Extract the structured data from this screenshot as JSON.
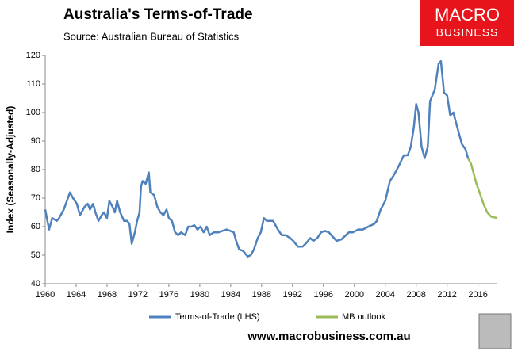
{
  "chart_data": {
    "type": "line",
    "title": "Australia's Terms-of-Trade",
    "subtitle": "Source: Australian Bureau of Statistics",
    "logo": [
      "MACRO",
      "BUSINESS"
    ],
    "footer": "www.macrobusiness.com.au",
    "y_label": "Index (Seasonally-Adjusted)",
    "xlim": [
      1960,
      2018.5
    ],
    "xticks": [
      1960,
      1964,
      1968,
      1972,
      1976,
      1980,
      1984,
      1988,
      1992,
      1996,
      2000,
      2004,
      2008,
      2012,
      2016
    ],
    "ylim": [
      40,
      120
    ],
    "yticks": [
      40,
      50,
      60,
      70,
      80,
      90,
      100,
      110,
      120
    ],
    "grid": false,
    "legend": "bottom",
    "series": [
      {
        "name": "Terms-of-Trade (LHS)",
        "color": "#4f81bd",
        "x": [
          1960.0,
          1960.5,
          1960.9,
          1961.5,
          1961.8,
          1962.4,
          1963.2,
          1963.6,
          1964.1,
          1964.5,
          1965.1,
          1965.5,
          1965.8,
          1966.2,
          1966.5,
          1966.9,
          1967.3,
          1967.6,
          1968.0,
          1968.3,
          1968.7,
          1969.0,
          1969.3,
          1969.7,
          1970.2,
          1970.6,
          1970.9,
          1971.2,
          1971.6,
          1971.9,
          1972.2,
          1972.4,
          1972.6,
          1973.0,
          1973.4,
          1973.6,
          1974.1,
          1974.5,
          1974.9,
          1975.3,
          1975.7,
          1976.0,
          1976.4,
          1976.8,
          1977.2,
          1977.6,
          1978.1,
          1978.5,
          1978.9,
          1979.3,
          1979.7,
          1980.1,
          1980.5,
          1980.9,
          1981.3,
          1981.8,
          1982.4,
          1982.9,
          1983.5,
          1984.4,
          1984.7,
          1985.1,
          1985.6,
          1986.2,
          1986.6,
          1987.0,
          1987.5,
          1987.9,
          1988.3,
          1988.7,
          1989.5,
          1990.1,
          1990.6,
          1991.1,
          1991.7,
          1992.1,
          1992.7,
          1993.3,
          1993.7,
          1994.3,
          1994.7,
          1995.2,
          1995.7,
          1996.2,
          1996.7,
          1997.2,
          1997.7,
          1998.3,
          1999.3,
          1999.8,
          2000.5,
          2001.1,
          2001.8,
          2002.6,
          2002.9,
          2003.4,
          2004.0,
          2004.6,
          2005.1,
          2005.7,
          2006.4,
          2006.9,
          2007.3,
          2007.7,
          2008.0,
          2008.3,
          2008.7,
          2009.1,
          2009.5,
          2009.8,
          2010.4,
          2010.9,
          2011.2,
          2011.6,
          2012.0,
          2012.4,
          2012.8,
          2013.1,
          2013.5,
          2013.9,
          2014.4,
          2014.7
        ],
        "values": [
          66,
          59,
          63,
          62,
          63,
          66,
          72,
          70,
          68,
          64,
          67,
          68,
          66,
          68,
          65,
          62,
          64,
          65,
          63,
          69,
          67,
          65,
          69,
          65,
          62,
          62,
          61,
          54,
          58,
          62,
          65,
          74,
          76,
          75,
          79,
          72,
          71,
          67,
          65,
          64,
          66,
          63,
          62,
          58,
          57,
          58,
          57,
          60,
          60,
          60.5,
          59,
          60,
          58,
          60,
          57,
          58,
          58,
          58.5,
          59,
          58,
          55,
          52,
          51.5,
          49.5,
          50,
          52,
          56,
          58,
          63,
          62,
          62,
          59,
          57,
          57,
          56,
          55,
          53,
          53,
          54,
          56,
          55,
          56,
          58,
          58.5,
          58,
          56.5,
          55,
          55.5,
          58,
          58,
          59,
          59,
          60,
          61,
          62,
          66,
          69,
          76,
          78,
          81,
          85,
          85,
          88,
          95,
          103,
          100,
          88,
          84,
          88,
          104,
          108,
          117,
          118,
          107,
          106,
          99,
          100,
          97,
          93,
          89,
          87,
          84
        ]
      },
      {
        "name": "MB outlook",
        "color": "#9bbb59",
        "x": [
          2014.7,
          2015.1,
          2015.4,
          2015.8,
          2016.2,
          2016.7,
          2017.2,
          2017.7,
          2018.5
        ],
        "values": [
          84,
          82,
          79,
          75,
          72,
          68,
          65,
          63.5,
          63
        ]
      }
    ]
  }
}
